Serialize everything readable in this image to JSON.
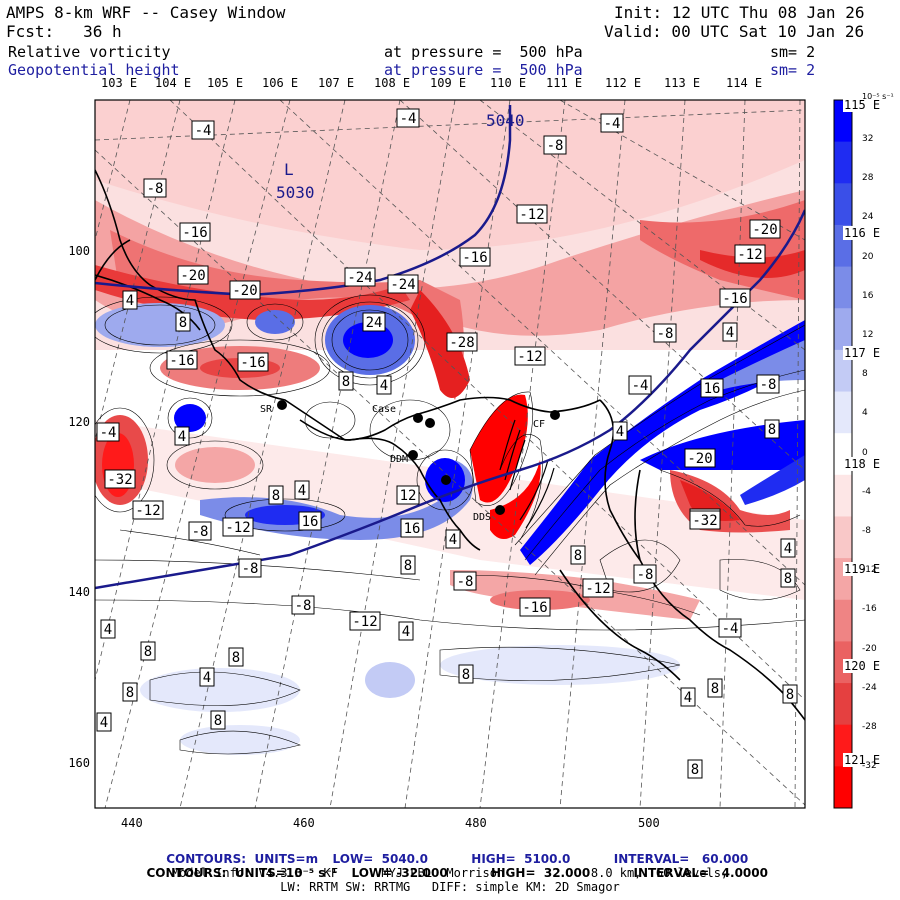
{
  "header": {
    "title": "AMPS 8-km WRF -- Casey Window",
    "init": "Init: 12 UTC Thu 08 Jan 26",
    "forecast": "Fcst:   36 h",
    "valid": "Valid: 00 UTC Sat 10 Jan 26",
    "field1_name": "Relative vorticity",
    "field1_level": "at pressure =  500 hPa",
    "field1_sm": "sm= 2",
    "field2_name": "Geopotential height",
    "field2_level": "at pressure =  500 hPa",
    "field2_sm": "sm= 2"
  },
  "map": {
    "top_lon_labels": [
      "103 E",
      "104 E",
      "105 E",
      "106 E",
      "107 E",
      "108 E",
      "109 E",
      "110 E",
      "111 E",
      "112 E",
      "113 E",
      "114 E"
    ],
    "right_lat_labels": [
      "115 E",
      "116 E",
      "117 E",
      "118 E",
      "119 E",
      "120 E",
      "121 E"
    ],
    "y_axis_ticks": [
      "100",
      "120",
      "140",
      "160"
    ],
    "x_axis_ticks": [
      "440",
      "460",
      "480",
      "500"
    ],
    "stations": [
      {
        "code": "SR"
      },
      {
        "code": "Case"
      },
      {
        "code": "CF"
      },
      {
        "code": "DDS"
      },
      {
        "code": "DDM"
      }
    ],
    "height_contours": [
      {
        "label": "5040"
      },
      {
        "label": "5030",
        "low_marker": "L"
      }
    ],
    "vorticity_boxes": [
      "-4",
      "-4",
      "-4",
      "-8",
      "-8",
      "-12",
      "-16",
      "-16",
      "-20",
      "-20",
      "-24",
      "-24",
      "-20",
      "-12",
      "-16",
      "-16",
      "-28",
      "-12",
      "-16",
      "-8",
      "-8",
      "-20",
      "-32",
      "-12",
      "-8",
      "-12",
      "-8",
      "-4",
      "-4",
      "-12",
      "-16",
      "-8",
      "-12",
      "-20",
      "-32",
      "-4",
      "24",
      "4",
      "8",
      "8",
      "4",
      "4",
      "8",
      "4",
      "8",
      "12",
      "16",
      "16",
      "4",
      "4",
      "8",
      "8",
      "16",
      "8",
      "4",
      "4",
      "8",
      "8",
      "4",
      "8",
      "4",
      "8",
      "8",
      "4",
      "8",
      "4",
      "8",
      "-8",
      "4",
      "8",
      "-8"
    ],
    "colors": {
      "positive": "#0000ff",
      "negative": "#ff0000",
      "height_line": "#1a1a8c"
    }
  },
  "colorbar": {
    "units": "10⁻⁵ s⁻¹",
    "labels": [
      "32",
      "28",
      "24",
      "20",
      "16",
      "12",
      "8",
      "4",
      "0",
      "-4",
      "-8",
      "-12",
      "-16",
      "-20",
      "-24",
      "-28",
      "-32"
    ],
    "colors": [
      "#0000ff",
      "#1f2cf2",
      "#3a4fe8",
      "#5a6ee6",
      "#7b8ce8",
      "#9eaaee",
      "#c3cbf5",
      "#e4e8fb",
      "#ffffff",
      "#fde6e6",
      "#f9c8c8",
      "#f4a6a6",
      "#ef8484",
      "#ea6262",
      "#e54040",
      "#ff1a1a",
      "#ff0000"
    ]
  },
  "footer": {
    "line1_prefix": "CONTOURS:  UNITS=m",
    "line1_low": "LOW=  5040.0",
    "line1_high": "HIGH=  5100.0",
    "line1_interval": "INTERVAL=   60.000",
    "line2_prefix": "CONTOURS:  UNITS=10⁻⁵ s⁻¹",
    "line2_low": "LOW= -32.000",
    "line2_high": "HIGH=  32.000",
    "line2_interval": "INTERVAL=   4.0000",
    "line3": "Model Info: V4.3.3   KF      MYJ PBL  Morrison            8.0 km,  60 levels,",
    "line4": "LW: RRTM SW: RRTMG   DIFF: simple KM: 2D Smagor"
  }
}
